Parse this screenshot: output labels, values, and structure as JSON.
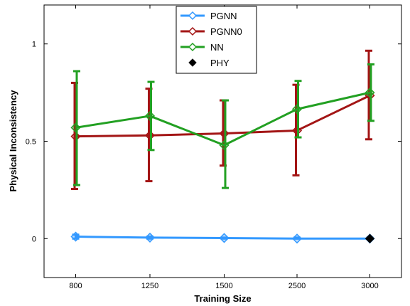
{
  "chart_data": {
    "type": "line",
    "title": "",
    "xlabel": "Training Size",
    "ylabel": "Physical Inconsistency",
    "categories": [
      "800",
      "1250",
      "1500",
      "2500",
      "3000"
    ],
    "ylim": [
      -0.2,
      1.2
    ],
    "yticks": [
      0,
      0.5,
      1
    ],
    "ytick_labels": [
      "0",
      "0.5",
      "1"
    ],
    "grid": false,
    "legend_position": "top-center",
    "series": [
      {
        "name": "PGNN",
        "color": "#3399ff",
        "marker": "diamond-open",
        "values": [
          0.01,
          0.005,
          0.003,
          0.0,
          0.0
        ],
        "err_low": [
          0.0,
          0.0,
          0.0,
          0.0,
          0.0
        ],
        "err_high": [
          0.02,
          0.01,
          0.005,
          0.005,
          0.005
        ]
      },
      {
        "name": "PGNN0",
        "color": "#a31515",
        "marker": "diamond-open",
        "values": [
          0.525,
          0.53,
          0.54,
          0.555,
          0.735
        ],
        "err_low": [
          0.255,
          0.295,
          0.375,
          0.325,
          0.51
        ],
        "err_high": [
          0.8,
          0.77,
          0.71,
          0.79,
          0.965
        ]
      },
      {
        "name": "NN",
        "color": "#22a022",
        "marker": "diamond-open",
        "values": [
          0.57,
          0.63,
          0.48,
          0.665,
          0.75
        ],
        "err_low": [
          0.275,
          0.455,
          0.26,
          0.52,
          0.605
        ],
        "err_high": [
          0.86,
          0.805,
          0.71,
          0.81,
          0.895
        ]
      },
      {
        "name": "PHY",
        "color": "#000000",
        "marker": "diamond-filled",
        "values": [
          null,
          null,
          null,
          null,
          0.0
        ]
      }
    ]
  }
}
